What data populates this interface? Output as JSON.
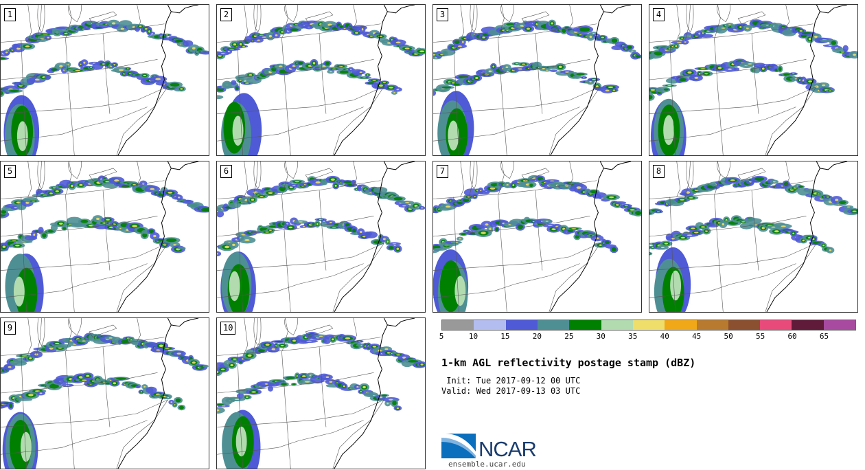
{
  "panels": [
    {
      "label": "1"
    },
    {
      "label": "2"
    },
    {
      "label": "3"
    },
    {
      "label": "4"
    },
    {
      "label": "5"
    },
    {
      "label": "6"
    },
    {
      "label": "7"
    },
    {
      "label": "8"
    },
    {
      "label": "9"
    },
    {
      "label": "10"
    }
  ],
  "colorbar": {
    "colors": [
      "#999999",
      "#b4bdf0",
      "#4f5ad6",
      "#4e8f94",
      "#008000",
      "#b2dbb0",
      "#efdf6a",
      "#f0a818",
      "#b87a2e",
      "#8a5030",
      "#e84a7a",
      "#601a3a",
      "#a84aa0"
    ],
    "ticks": [
      "5",
      "10",
      "15",
      "20",
      "25",
      "30",
      "35",
      "40",
      "45",
      "50",
      "55",
      "60",
      "65"
    ]
  },
  "title": "1-km AGL reflectivity postage stamp (dBZ)",
  "init": " Init: Tue 2017-09-12 00 UTC",
  "valid": "Valid: Wed 2017-09-13 03 UTC",
  "logo_text": "NCAR",
  "site": "ensemble.ucar.edu"
}
